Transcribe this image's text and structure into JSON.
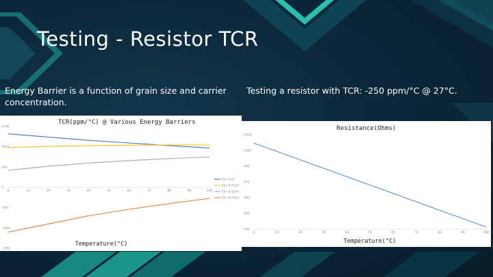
{
  "slide": {
    "title": "Testing - Resistor TCR",
    "left_text": "Energy Barrier is a function of grain size and carrier concentration.",
    "right_text": "Testing a resistor with TCR: -250 ppm/°C @ 27°C.",
    "colors": {
      "background": "#0b2436",
      "accent_teal": "#1fa89a",
      "text": "#ffffff"
    }
  },
  "chart_data": [
    {
      "type": "line",
      "title": "TCR(ppm/°C) @ Various Energy Barriers",
      "xlabel": "Temperature(°C)",
      "ylabel": "",
      "xlim": [
        0,
        100
      ],
      "ylim": [
        -1500,
        1500
      ],
      "xticks": [
        "0",
        "10",
        "20",
        "30",
        "40",
        "50",
        "60",
        "70",
        "80",
        "90",
        "100"
      ],
      "yticks": [
        "1500",
        "1000",
        "500",
        "0",
        "-500",
        "-1000",
        "-1500"
      ],
      "grid": false,
      "legend": "right",
      "series": [
        {
          "name": "Eb=0eV",
          "color": "#4472c4",
          "x": [
            0,
            20,
            40,
            60,
            80,
            100
          ],
          "y": [
            1320,
            1240,
            1160,
            1095,
            1030,
            970
          ]
        },
        {
          "name": "Eb=0.01eV",
          "color": "#ffc000",
          "x": [
            0,
            20,
            40,
            60,
            80,
            100
          ],
          "y": [
            980,
            1010,
            1030,
            1040,
            1045,
            1045
          ]
        },
        {
          "name": "Eb=0.02eV",
          "color": "#a5a5a5",
          "x": [
            0,
            20,
            40,
            60,
            80,
            100
          ],
          "y": [
            420,
            520,
            600,
            660,
            710,
            750
          ]
        },
        {
          "name": "Eb=0.03eV",
          "color": "#ed7d31",
          "x": [
            0,
            20,
            40,
            60,
            80,
            100
          ],
          "y": [
            -1100,
            -900,
            -700,
            -540,
            -400,
            -270
          ]
        }
      ]
    },
    {
      "type": "line",
      "title": "Resistance(Ohms)",
      "xlabel": "Temperature(°C)",
      "ylabel": "",
      "xlim": [
        0,
        100
      ],
      "ylim": [
        930,
        1020
      ],
      "xticks": [
        "0",
        "10",
        "20",
        "30",
        "40",
        "50",
        "60",
        "70",
        "80",
        "90",
        "100"
      ],
      "yticks": [
        "1020",
        "1005",
        "990",
        "975",
        "960",
        "945",
        "930"
      ],
      "grid": false,
      "series": [
        {
          "color": "#5b8ec9",
          "x": [
            0,
            100
          ],
          "y": [
            1012,
            932
          ]
        }
      ]
    }
  ]
}
